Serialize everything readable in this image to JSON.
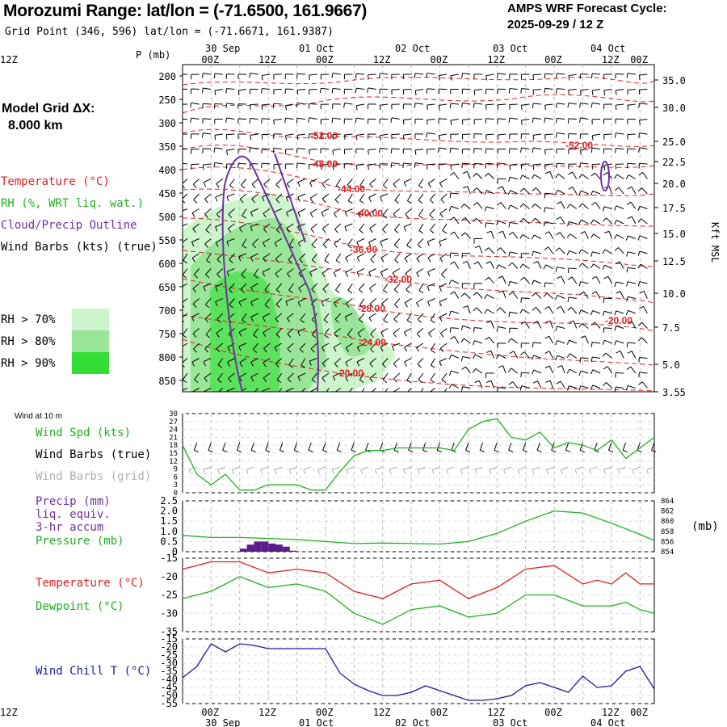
{
  "header": {
    "title": "Morozumi Range:  lat/lon = (-71.6500, 161.9667)",
    "subtitle": "Grid Point (346, 596) lat/lon = (-71.6671, 161.9387)",
    "forecast_line1": "AMPS WRF Forecast Cycle:",
    "forecast_line2": "2025-09-29 / 12  Z"
  },
  "side": {
    "grid_line1": "Model Grid ΔX:",
    "grid_line2": "8.000 km",
    "legend": [
      {
        "text": "Temperature (°C)",
        "color": "#e02020"
      },
      {
        "text": "RH (%, WRT liq. wat.)",
        "color": "#20b020"
      },
      {
        "text": "Cloud/Precip Outline",
        "color": "#7030a0"
      },
      {
        "text": "Wind Barbs (kts) (true)",
        "color": "#000000"
      }
    ],
    "rh_legend": [
      {
        "text": "RH > 70%",
        "color": "#ccf5cc"
      },
      {
        "text": "RH > 80%",
        "color": "#99e699"
      },
      {
        "text": "RH > 90%",
        "color": "#33dd33"
      }
    ]
  },
  "time_axis": {
    "hour_labels": [
      "00Z",
      "12Z",
      "00Z",
      "12Z",
      "00Z",
      "12Z",
      "00Z",
      "12Z",
      "00Z",
      "12Z"
    ],
    "top_dates": [
      "30 Sep",
      "01 Oct",
      "02 Oct",
      "03 Oct",
      "04 Oct"
    ],
    "bottom_dates": [
      "30 Sep",
      "01 Oct",
      "02 Oct",
      "03 Oct",
      "04 Oct"
    ]
  },
  "cross_section": {
    "y_label": "P (mb)",
    "pressure_levels": [
      "200",
      "250",
      "300",
      "350",
      "400",
      "450",
      "500",
      "550",
      "600",
      "650",
      "700",
      "750",
      "800",
      "850"
    ],
    "height_labels": [
      "35.0",
      "30.0",
      "25.0",
      "22.5",
      "20.0",
      "17.5",
      "15.0",
      "12.5",
      "10.0",
      "7.5",
      "5.0",
      "3.55"
    ],
    "right_label": "Kft MSL",
    "temp_labels": [
      "-52.00",
      "-48.00",
      "-44.00",
      "-40.00",
      "-36.00",
      "-32.00",
      "-28.00",
      "-24.00",
      "-20.00",
      "-52.00",
      "-20.00"
    ]
  },
  "panel_wind": {
    "title": "Wind at 10 m",
    "label1": {
      "text": "Wind Spd (kts)",
      "color": "#20b020"
    },
    "label2": {
      "text": "Wind Barbs (true)",
      "color": "#000000"
    },
    "label3": {
      "text": "Wind Barbs (grid)",
      "color": "#b0b0b0"
    },
    "ticks": [
      "30",
      "27",
      "24",
      "21",
      "18",
      "15",
      "12",
      "9",
      "6",
      "3",
      "0"
    ]
  },
  "panel_precip": {
    "label1": {
      "text": "Precip (mm)",
      "color": "#7030a0"
    },
    "label2": {
      "text": "liq. equiv.",
      "color": "#7030a0"
    },
    "label3": {
      "text": "3-hr accum",
      "color": "#7030a0"
    },
    "label4": {
      "text": "Pressure (mb)",
      "color": "#20b020"
    },
    "left_ticks": [
      "2.5",
      "2.0",
      "1.5",
      "1.0",
      "0.5",
      "0"
    ],
    "right_ticks": [
      "864",
      "862",
      "860",
      "858",
      "856",
      "854"
    ],
    "right_unit": "(mb)"
  },
  "panel_temp": {
    "label1": {
      "text": "Temperature (°C)",
      "color": "#e02020"
    },
    "label2": {
      "text": "Dewpoint (°C)",
      "color": "#20b020"
    },
    "ticks": [
      "-15",
      "-20",
      "-25",
      "-30",
      "-35"
    ]
  },
  "panel_chill": {
    "label1": {
      "text": "Wind Chill T (°C)",
      "color": "#1a1aa0"
    },
    "ticks": [
      "-15",
      "-20",
      "-25",
      "-30",
      "-35",
      "-40",
      "-45",
      "-50",
      "-55"
    ]
  },
  "chart_data": [
    {
      "type": "line",
      "name": "wind_speed_10m",
      "x_hours": [
        0,
        6,
        12,
        18,
        24,
        30,
        36,
        42,
        48,
        54,
        60,
        66,
        72,
        78,
        84,
        90,
        96,
        102,
        108,
        114,
        120,
        126,
        132,
        138,
        144,
        150,
        156,
        162,
        168,
        174,
        180,
        186,
        192,
        198
      ],
      "series": [
        {
          "name": "Wind Spd (kts)",
          "color": "#20b020",
          "values": [
            18,
            7,
            3,
            7,
            1,
            1,
            3,
            3,
            3,
            1,
            1,
            8,
            14,
            16,
            16,
            17,
            17,
            17,
            17,
            16,
            24,
            27,
            28,
            21,
            20,
            23,
            17,
            19,
            18,
            16,
            20,
            13,
            17,
            21
          ]
        }
      ],
      "ylim": [
        0,
        30
      ]
    },
    {
      "type": "line",
      "name": "pressure",
      "x_hours": [
        0,
        12,
        24,
        36,
        48,
        60,
        72,
        84,
        96,
        108,
        120,
        132,
        144,
        156,
        168,
        180,
        192,
        198
      ],
      "series": [
        {
          "name": "Pressure (mb)",
          "color": "#20b020",
          "values": [
            857.2,
            856.8,
            856.8,
            856.6,
            856.4,
            856,
            855.6,
            855.7,
            855.6,
            855.5,
            856,
            857.6,
            860,
            862,
            861.6,
            859.6,
            857.4,
            856.2
          ]
        }
      ],
      "ylim": [
        854,
        864
      ]
    },
    {
      "type": "bar",
      "name": "precip_3hr",
      "x_hours": [
        24,
        27,
        30,
        33,
        36,
        39,
        42,
        45
      ],
      "series": [
        {
          "name": "Precip (mm)",
          "color": "#5a1e8c",
          "values": [
            0.15,
            0.35,
            0.5,
            0.5,
            0.4,
            0.35,
            0.25,
            0.05
          ]
        }
      ],
      "ylim": [
        0,
        2.5
      ]
    },
    {
      "type": "line",
      "name": "temperature_dewpoint",
      "x_hours": [
        0,
        12,
        24,
        36,
        48,
        60,
        72,
        84,
        96,
        108,
        120,
        132,
        144,
        156,
        168,
        174,
        180,
        186,
        192,
        198
      ],
      "series": [
        {
          "name": "Temperature (°C)",
          "color": "#e02020",
          "values": [
            -18,
            -16,
            -16,
            -19,
            -18,
            -19,
            -24,
            -26,
            -22,
            -21,
            -26,
            -23,
            -18,
            -17,
            -22,
            -21,
            -22,
            -19,
            -22,
            -22
          ]
        },
        {
          "name": "Dewpoint (°C)",
          "color": "#20b020",
          "values": [
            -26,
            -24,
            -20,
            -23,
            -22,
            -24,
            -30,
            -33,
            -29,
            -28,
            -31,
            -30,
            -25,
            -25,
            -28,
            -28,
            -28,
            -27,
            -29,
            -30
          ]
        }
      ],
      "ylim": [
        -35,
        -15
      ]
    },
    {
      "type": "line",
      "name": "wind_chill",
      "x_hours": [
        0,
        6,
        12,
        18,
        24,
        30,
        36,
        42,
        48,
        54,
        60,
        66,
        72,
        78,
        84,
        90,
        96,
        102,
        108,
        114,
        120,
        126,
        132,
        138,
        144,
        150,
        156,
        162,
        168,
        174,
        180,
        186,
        192,
        198
      ],
      "series": [
        {
          "name": "Wind Chill T (°C)",
          "color": "#1a1aa0",
          "values": [
            -39,
            -32,
            -18,
            -23,
            -18,
            -19,
            -21,
            -21,
            -21,
            -21,
            -21,
            -36,
            -43,
            -47,
            -50,
            -50,
            -48,
            -44,
            -47,
            -50,
            -53,
            -53,
            -52,
            -50,
            -44,
            -42,
            -45,
            -48,
            -38,
            -45,
            -44,
            -35,
            -32,
            -46
          ]
        }
      ],
      "ylim": [
        -55,
        -15
      ]
    }
  ]
}
